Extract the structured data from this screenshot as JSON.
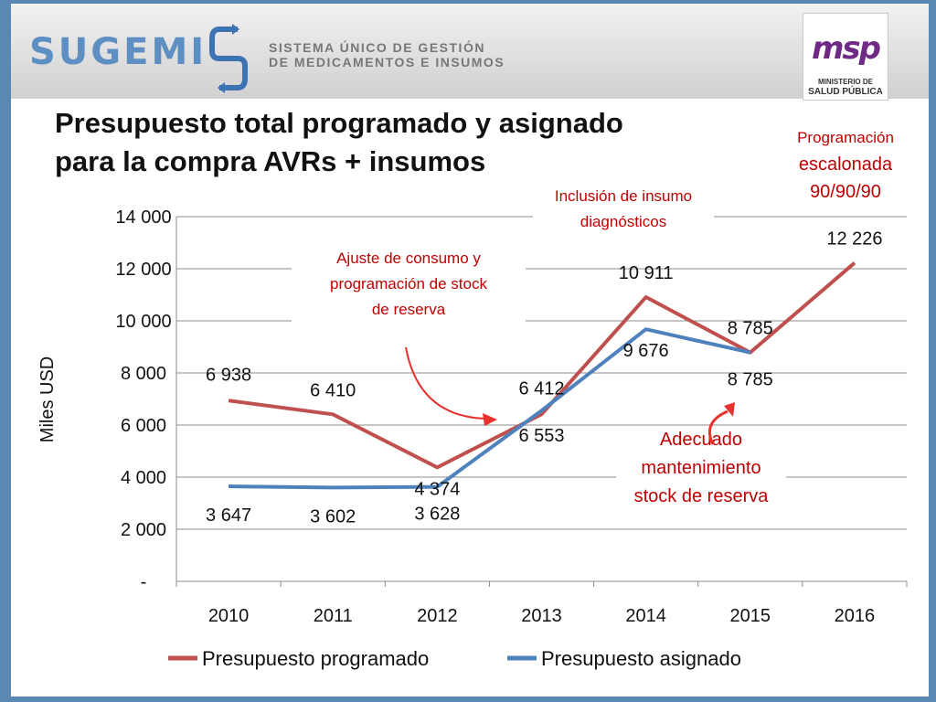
{
  "header": {
    "brand_name": "SUGEMI",
    "brand_subtitle_line1": "SISTEMA ÚNICO DE GESTIÓN",
    "brand_subtitle_line2": "DE MEDICAMENTOS E INSUMOS",
    "ministry_logo_text": "msp",
    "ministry_line1": "MINISTERIO DE",
    "ministry_line2": "SALUD PÚBLICA"
  },
  "slide": {
    "title_line1": "Presupuesto total programado y asignado",
    "title_line2": "para la compra AVRs + insumos"
  },
  "chart_data": {
    "type": "line",
    "categories": [
      "2010",
      "2011",
      "2012",
      "2013",
      "2014",
      "2015",
      "2016"
    ],
    "series": [
      {
        "name": "Presupuesto programado",
        "color": "#c0504d",
        "values": [
          6938,
          6410,
          4374,
          6412,
          10911,
          8785,
          12226
        ],
        "labels": [
          "6 938",
          "6 410",
          "4 374",
          "6 412",
          "10 911",
          "8 785",
          "12 226"
        ]
      },
      {
        "name": "Presupuesto asignado",
        "color": "#4f81bd",
        "values": [
          3647,
          3602,
          3628,
          6553,
          9676,
          8785,
          null
        ],
        "labels": [
          "3 647",
          "3 602",
          "3 628",
          "6 553",
          "9 676",
          "8 785",
          ""
        ]
      }
    ],
    "ylabel": "Miles USD",
    "ylim": [
      0,
      14000
    ],
    "yticks": [
      0,
      2000,
      4000,
      6000,
      8000,
      10000,
      12000,
      14000
    ],
    "ytick_labels": [
      "-",
      "2 000",
      "4 000",
      "6 000",
      "8 000",
      "10 000",
      "12 000",
      "14 000"
    ],
    "grid": true,
    "legend_position": "bottom",
    "annotations": [
      {
        "lines": [
          "Ajuste de consumo y",
          "programación de stock",
          "de reserva"
        ],
        "color": "#c00000"
      },
      {
        "lines": [
          "Inclusión de insumo",
          "diagnósticos"
        ],
        "color": "#c00000"
      },
      {
        "lines": [
          "Programación",
          "escalonada",
          "90/90/90"
        ],
        "color": "#c00000"
      },
      {
        "lines": [
          "Adecuado",
          "mantenimiento",
          "stock de reserva"
        ],
        "color": "#c00000"
      }
    ]
  }
}
